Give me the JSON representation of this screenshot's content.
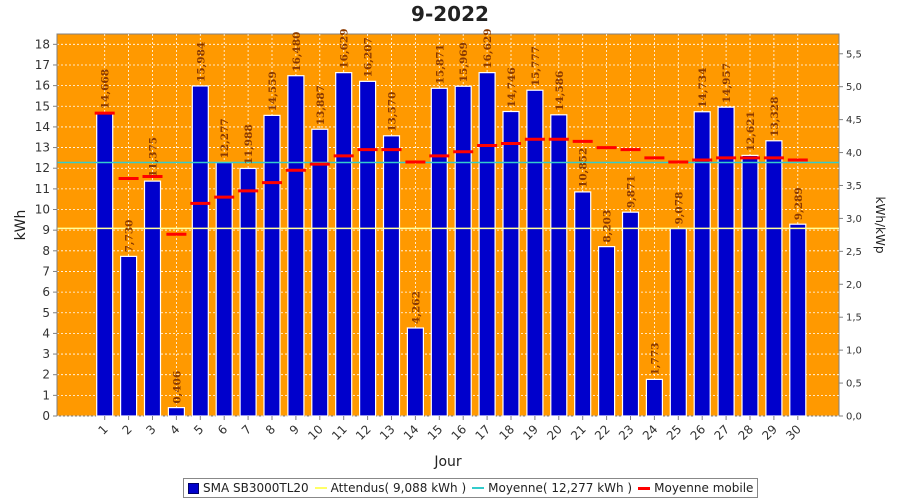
{
  "chart_data": {
    "type": "bar",
    "title": "9-2022",
    "xlabel": "Jour",
    "ylabel": "kWh",
    "y2label": "kWh/kWp",
    "ylim": [
      0,
      18.5
    ],
    "y2lim": [
      0,
      5.8
    ],
    "yticks": [
      0,
      1,
      2,
      3,
      4,
      5,
      6,
      7,
      8,
      9,
      10,
      11,
      12,
      13,
      14,
      15,
      16,
      17,
      18
    ],
    "y2ticks": [
      "0,0",
      "0,5",
      "1,0",
      "1,5",
      "2,0",
      "2,5",
      "3,0",
      "3,5",
      "4,0",
      "4,5",
      "5,0",
      "5,5"
    ],
    "grid": true,
    "legend_position": "bottom",
    "categories": [
      "1",
      "2",
      "3",
      "4",
      "5",
      "6",
      "7",
      "8",
      "9",
      "10",
      "11",
      "12",
      "13",
      "14",
      "15",
      "16",
      "17",
      "18",
      "19",
      "20",
      "21",
      "22",
      "23",
      "24",
      "25",
      "26",
      "27",
      "28",
      "29",
      "30"
    ],
    "series": [
      {
        "name": "SMA SB3000TL20",
        "kind": "bar",
        "values": [
          14.668,
          7.73,
          11.375,
          0.406,
          15.984,
          12.277,
          11.988,
          14.559,
          16.48,
          13.887,
          16.629,
          16.207,
          13.57,
          4.262,
          15.871,
          15.969,
          16.629,
          14.746,
          15.777,
          14.586,
          10.852,
          8.203,
          9.871,
          1.773,
          9.078,
          14.734,
          14.957,
          12.621,
          13.328,
          9.289
        ],
        "labels": [
          "14,668",
          "7,730",
          "11,375",
          "0,406",
          "15,984",
          "12,277",
          "11,988",
          "14,559",
          "16,480",
          "13,887",
          "16,629",
          "16,207",
          "13,570",
          "4,262",
          "15,871",
          "15,969",
          "16,629",
          "14,746",
          "15,777",
          "14,586",
          "10,852",
          "8,203",
          "9,871",
          "1,773",
          "9,078",
          "14,734",
          "14,957",
          "12,621",
          "13,328",
          "9,289"
        ]
      },
      {
        "name": "Attendus( 9,088 kWh )",
        "kind": "hline",
        "value": 9.088
      },
      {
        "name": "Moyenne( 12,277 kWh )",
        "kind": "hline",
        "value": 12.277
      },
      {
        "name": "Moyenne mobile",
        "kind": "moving-average",
        "values": [
          14.668,
          11.5,
          11.6,
          8.8,
          10.3,
          10.6,
          10.9,
          11.3,
          11.9,
          12.2,
          12.6,
          12.9,
          12.9,
          12.3,
          12.6,
          12.8,
          13.1,
          13.2,
          13.4,
          13.4,
          13.3,
          13.0,
          12.9,
          12.5,
          12.3,
          12.4,
          12.5,
          12.5,
          12.5,
          12.4
        ]
      }
    ],
    "colors": {
      "plot_bg": "#ff9900",
      "bar": "#0000cc",
      "bar_edge": "#ffffff",
      "expected": "#ffff99",
      "average": "#33cccc",
      "moving": "#ff0000",
      "grid": "#ffffff",
      "bar_label": "#8b3a00"
    }
  }
}
